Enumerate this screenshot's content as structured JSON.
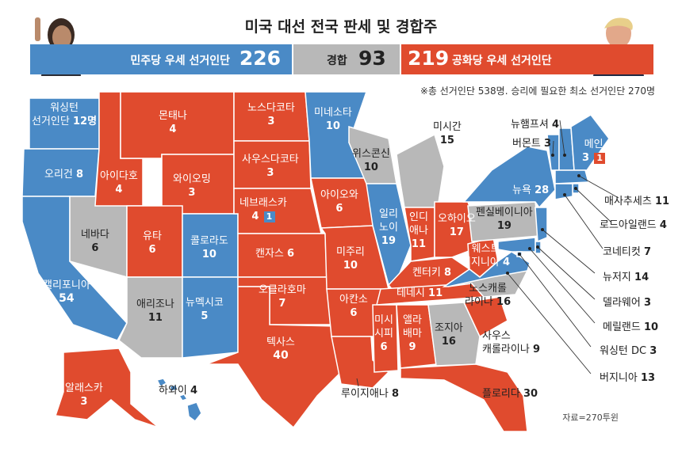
{
  "title": "미국 대선 전국 판세 및 경합주",
  "tally": {
    "dem": {
      "label": "민주당 우세 선거인단",
      "value": "226"
    },
    "toss": {
      "label": "경합",
      "value": "93"
    },
    "rep": {
      "label": "공화당 우세 선거인단",
      "value": "219"
    }
  },
  "footnote": "※총 선거인단 538명. 승리에 필요한 최소 선거인단 270명",
  "source": "자료=270투윈",
  "colors": {
    "dem": "#4a8ac6",
    "rep": "#e04b2e",
    "toss": "#b8b8b8"
  },
  "states": {
    "wa": {
      "name": "워싱턴",
      "name2": "선거인단",
      "votes": "12명",
      "lean": "dem"
    },
    "or": {
      "name": "오리건",
      "votes": "8",
      "lean": "dem"
    },
    "ca": {
      "name": "캘리포니아",
      "votes": "54",
      "lean": "dem"
    },
    "nv": {
      "name": "네바다",
      "votes": "6",
      "lean": "toss"
    },
    "id": {
      "name": "아이다호",
      "votes": "4",
      "lean": "rep"
    },
    "mt": {
      "name": "몬태나",
      "votes": "4",
      "lean": "rep"
    },
    "wy": {
      "name": "와이오밍",
      "votes": "3",
      "lean": "rep"
    },
    "ut": {
      "name": "유타",
      "votes": "6",
      "lean": "rep"
    },
    "co": {
      "name": "콜로라도",
      "votes": "10",
      "lean": "dem"
    },
    "az": {
      "name": "애리조나",
      "votes": "11",
      "lean": "toss"
    },
    "nm": {
      "name": "뉴멕시코",
      "votes": "5",
      "lean": "dem"
    },
    "nd": {
      "name": "노스다코타",
      "votes": "3",
      "lean": "rep"
    },
    "sd": {
      "name": "사우스다코타",
      "votes": "3",
      "lean": "rep"
    },
    "ne": {
      "name": "네브래스카",
      "votes": "4",
      "extra": "1",
      "lean": "rep"
    },
    "ks": {
      "name": "캔자스",
      "votes": "6",
      "lean": "rep"
    },
    "ok": {
      "name": "오클라호마",
      "votes": "7",
      "lean": "rep"
    },
    "tx": {
      "name": "텍사스",
      "votes": "40",
      "lean": "rep"
    },
    "mn": {
      "name": "미네소타",
      "votes": "10",
      "lean": "dem"
    },
    "ia": {
      "name": "아이오와",
      "votes": "6",
      "lean": "rep"
    },
    "mo": {
      "name": "미주리",
      "votes": "10",
      "lean": "rep"
    },
    "ar": {
      "name": "아칸소",
      "votes": "6",
      "lean": "rep"
    },
    "la": {
      "name": "루이지애나",
      "votes": "8",
      "lean": "rep"
    },
    "wi": {
      "name": "위스콘신",
      "votes": "10",
      "lean": "toss"
    },
    "il": {
      "name": "일리",
      "name2": "노이",
      "votes": "19",
      "lean": "dem"
    },
    "mi": {
      "name": "미시간",
      "votes": "15",
      "lean": "toss"
    },
    "in": {
      "name": "인디",
      "name2": "애나",
      "votes": "11",
      "lean": "rep"
    },
    "oh": {
      "name": "오하이오",
      "votes": "17",
      "lean": "rep"
    },
    "ky": {
      "name": "켄터키",
      "votes": "8",
      "lean": "rep"
    },
    "tn": {
      "name": "테네시",
      "votes": "11",
      "lean": "rep"
    },
    "ms": {
      "name": "미시",
      "name2": "시피",
      "votes": "6",
      "lean": "rep"
    },
    "al": {
      "name": "앨라",
      "name2": "배마",
      "votes": "9",
      "lean": "rep"
    },
    "ga": {
      "name": "조지아",
      "votes": "16",
      "lean": "toss"
    },
    "fl": {
      "name": "플로리다",
      "votes": "30",
      "lean": "rep"
    },
    "sc": {
      "name": "사우스",
      "name2": "캐롤라이나",
      "votes": "9",
      "lean": "rep"
    },
    "nc": {
      "name": "노스캐롤",
      "name2": "라이나",
      "votes": "16",
      "lean": "toss"
    },
    "wv": {
      "name": "웨스트",
      "name2": "버지니아",
      "votes": "4",
      "lean": "rep"
    },
    "va": {
      "name": "버지니아",
      "votes": "13",
      "lean": "dem"
    },
    "pa": {
      "name": "펜실베이니아",
      "votes": "19",
      "lean": "toss"
    },
    "ny": {
      "name": "뉴욕",
      "votes": "28",
      "lean": "dem"
    },
    "vt": {
      "name": "버몬트",
      "votes": "3",
      "lean": "dem"
    },
    "nh": {
      "name": "뉴햄프셔",
      "votes": "4",
      "lean": "dem"
    },
    "me": {
      "name": "메인",
      "votes": "3",
      "extra": "1",
      "lean": "dem"
    },
    "ma": {
      "name": "매사추세츠",
      "votes": "11",
      "lean": "dem"
    },
    "ri": {
      "name": "로드아일랜드",
      "votes": "4",
      "lean": "dem"
    },
    "ct": {
      "name": "코네티컷",
      "votes": "7",
      "lean": "dem"
    },
    "nj": {
      "name": "뉴저지",
      "votes": "14",
      "lean": "dem"
    },
    "de": {
      "name": "델라웨어",
      "votes": "3",
      "lean": "dem"
    },
    "md": {
      "name": "메릴랜드",
      "votes": "10",
      "lean": "dem"
    },
    "dc": {
      "name": "워싱턴 DC",
      "votes": "3",
      "lean": "dem"
    },
    "ak": {
      "name": "알래스카",
      "votes": "3",
      "lean": "rep"
    },
    "hi": {
      "name": "하와이",
      "votes": "4",
      "lean": "dem"
    }
  }
}
